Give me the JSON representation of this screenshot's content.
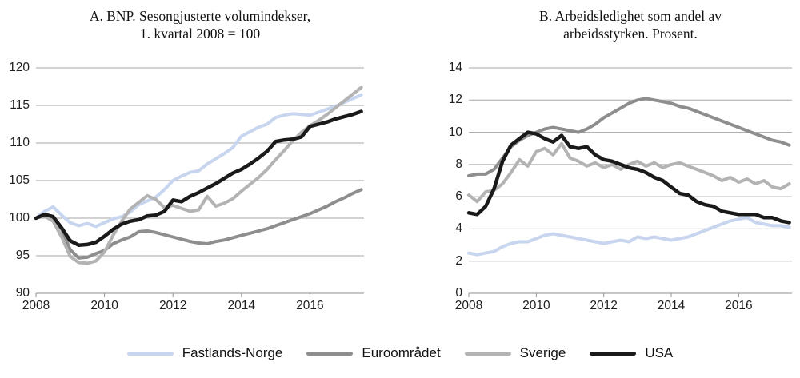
{
  "style": {
    "background": "#ffffff",
    "grid_color": "#a6a6a6",
    "axis_color": "#8f8f8f",
    "text_color": "#1f1f1f"
  },
  "legend": {
    "position": "bottom",
    "items": [
      {
        "label": "Fastlands-Norge",
        "color": "#c7d5ef"
      },
      {
        "label": "Euroområdet",
        "color": "#8e8e8e"
      },
      {
        "label": "Sverige",
        "color": "#b3b3b3"
      },
      {
        "label": "USA",
        "color": "#1a1a1a"
      }
    ]
  },
  "chart_data": [
    {
      "type": "line",
      "title": "A. BNP. Sesongjusterte volumindekser, 1. kvartal 2008 = 100",
      "title_lines": [
        "A. BNP. Sesongjusterte volumindekser,",
        "1. kvartal 2008 = 100"
      ],
      "xlabel": "",
      "ylabel": "",
      "grid": true,
      "xlim": [
        2008,
        2017.58
      ],
      "ylim": [
        90,
        120
      ],
      "x_ticks": [
        2008,
        2010,
        2012,
        2014,
        2016
      ],
      "y_ticks": [
        90,
        95,
        100,
        105,
        110,
        115,
        120
      ],
      "x_start": 2008.0,
      "x_step": 0.25,
      "x_unit": "quarter",
      "series": [
        {
          "name": "Fastlands-Norge",
          "color": "#c7d5ef",
          "width": 4,
          "values": [
            100.0,
            100.9,
            101.5,
            100.4,
            99.4,
            99.0,
            99.3,
            98.9,
            99.4,
            99.9,
            100.2,
            100.8,
            101.8,
            102.3,
            102.8,
            103.8,
            105.0,
            105.6,
            106.1,
            106.3,
            107.2,
            107.9,
            108.6,
            109.4,
            110.9,
            111.5,
            112.1,
            112.5,
            113.4,
            113.7,
            113.9,
            113.8,
            113.7,
            114.1,
            114.5,
            114.9,
            115.4,
            115.9,
            116.4
          ]
        },
        {
          "name": "Euroområdet",
          "color": "#8e8e8e",
          "width": 4,
          "values": [
            100.0,
            100.4,
            100.0,
            98.5,
            95.8,
            94.7,
            94.8,
            95.3,
            95.7,
            96.6,
            97.1,
            97.5,
            98.2,
            98.3,
            98.1,
            97.8,
            97.5,
            97.2,
            96.9,
            96.7,
            96.6,
            96.9,
            97.1,
            97.4,
            97.7,
            98.0,
            98.3,
            98.6,
            99.0,
            99.4,
            99.8,
            100.2,
            100.6,
            101.1,
            101.6,
            102.2,
            102.7,
            103.3,
            103.8
          ]
        },
        {
          "name": "Sverige",
          "color": "#b3b3b3",
          "width": 4,
          "values": [
            100.0,
            100.3,
            99.6,
            97.5,
            94.9,
            94.1,
            94.0,
            94.3,
            95.5,
            97.7,
            99.6,
            101.2,
            102.1,
            103.0,
            102.5,
            101.4,
            101.7,
            101.3,
            100.9,
            101.1,
            102.9,
            101.6,
            102.0,
            102.6,
            103.6,
            104.5,
            105.4,
            106.5,
            107.8,
            109.0,
            110.3,
            111.4,
            112.3,
            113.0,
            113.8,
            114.7,
            115.6,
            116.5,
            117.4
          ]
        },
        {
          "name": "USA",
          "color": "#1a1a1a",
          "width": 4.5,
          "values": [
            100.0,
            100.5,
            100.2,
            98.7,
            97.0,
            96.4,
            96.5,
            96.8,
            97.6,
            98.5,
            99.2,
            99.6,
            99.8,
            100.3,
            100.4,
            100.9,
            102.4,
            102.2,
            102.9,
            103.4,
            104.0,
            104.6,
            105.3,
            106.0,
            106.5,
            107.2,
            108.0,
            108.9,
            110.2,
            110.4,
            110.5,
            110.8,
            112.2,
            112.5,
            112.8,
            113.2,
            113.5,
            113.8,
            114.2
          ]
        }
      ]
    },
    {
      "type": "line",
      "title": "B. Arbeidsledighet som andel av arbeidsstyrken. Prosent.",
      "title_lines": [
        "B. Arbeidsledighet som andel av",
        "arbeidsstyrken. Prosent."
      ],
      "xlabel": "",
      "ylabel": "",
      "grid": true,
      "xlim": [
        2008,
        2017.58
      ],
      "ylim": [
        0,
        14
      ],
      "x_ticks": [
        2008,
        2010,
        2012,
        2014,
        2016
      ],
      "y_ticks": [
        0,
        2,
        4,
        6,
        8,
        10,
        12,
        14
      ],
      "x_start": 2008.0,
      "x_step": 0.25,
      "x_unit": "quarter",
      "series": [
        {
          "name": "Fastlands-Norge",
          "color": "#c7d5ef",
          "width": 4,
          "values": [
            2.5,
            2.4,
            2.5,
            2.6,
            2.9,
            3.1,
            3.2,
            3.2,
            3.4,
            3.6,
            3.7,
            3.6,
            3.5,
            3.4,
            3.3,
            3.2,
            3.1,
            3.2,
            3.3,
            3.2,
            3.5,
            3.4,
            3.5,
            3.4,
            3.3,
            3.4,
            3.5,
            3.7,
            3.9,
            4.1,
            4.3,
            4.5,
            4.6,
            4.7,
            4.4,
            4.3,
            4.2,
            4.2,
            4.1
          ]
        },
        {
          "name": "Euroområdet",
          "color": "#8e8e8e",
          "width": 4,
          "values": [
            7.3,
            7.4,
            7.4,
            7.7,
            8.4,
            9.1,
            9.5,
            9.8,
            10.0,
            10.2,
            10.3,
            10.2,
            10.1,
            10.0,
            10.2,
            10.5,
            10.9,
            11.2,
            11.5,
            11.8,
            12.0,
            12.1,
            12.0,
            11.9,
            11.8,
            11.6,
            11.5,
            11.3,
            11.1,
            10.9,
            10.7,
            10.5,
            10.3,
            10.1,
            9.9,
            9.7,
            9.5,
            9.4,
            9.2
          ]
        },
        {
          "name": "Sverige",
          "color": "#b3b3b3",
          "width": 4,
          "values": [
            6.1,
            5.7,
            6.3,
            6.4,
            6.8,
            7.5,
            8.3,
            7.9,
            8.8,
            9.0,
            8.6,
            9.3,
            8.4,
            8.2,
            7.9,
            8.1,
            7.8,
            8.0,
            7.7,
            8.0,
            8.2,
            7.9,
            8.1,
            7.8,
            8.0,
            8.1,
            7.9,
            7.7,
            7.5,
            7.3,
            7.0,
            7.2,
            6.9,
            7.1,
            6.8,
            7.0,
            6.6,
            6.5,
            6.8
          ]
        },
        {
          "name": "USA",
          "color": "#1a1a1a",
          "width": 4.5,
          "values": [
            5.0,
            4.9,
            5.4,
            6.5,
            8.2,
            9.2,
            9.6,
            10.0,
            9.9,
            9.6,
            9.4,
            9.8,
            9.1,
            9.0,
            9.1,
            8.6,
            8.3,
            8.2,
            8.0,
            7.8,
            7.7,
            7.5,
            7.2,
            7.0,
            6.6,
            6.2,
            6.1,
            5.7,
            5.5,
            5.4,
            5.1,
            5.0,
            4.9,
            4.9,
            4.9,
            4.7,
            4.7,
            4.5,
            4.4
          ]
        }
      ]
    }
  ]
}
